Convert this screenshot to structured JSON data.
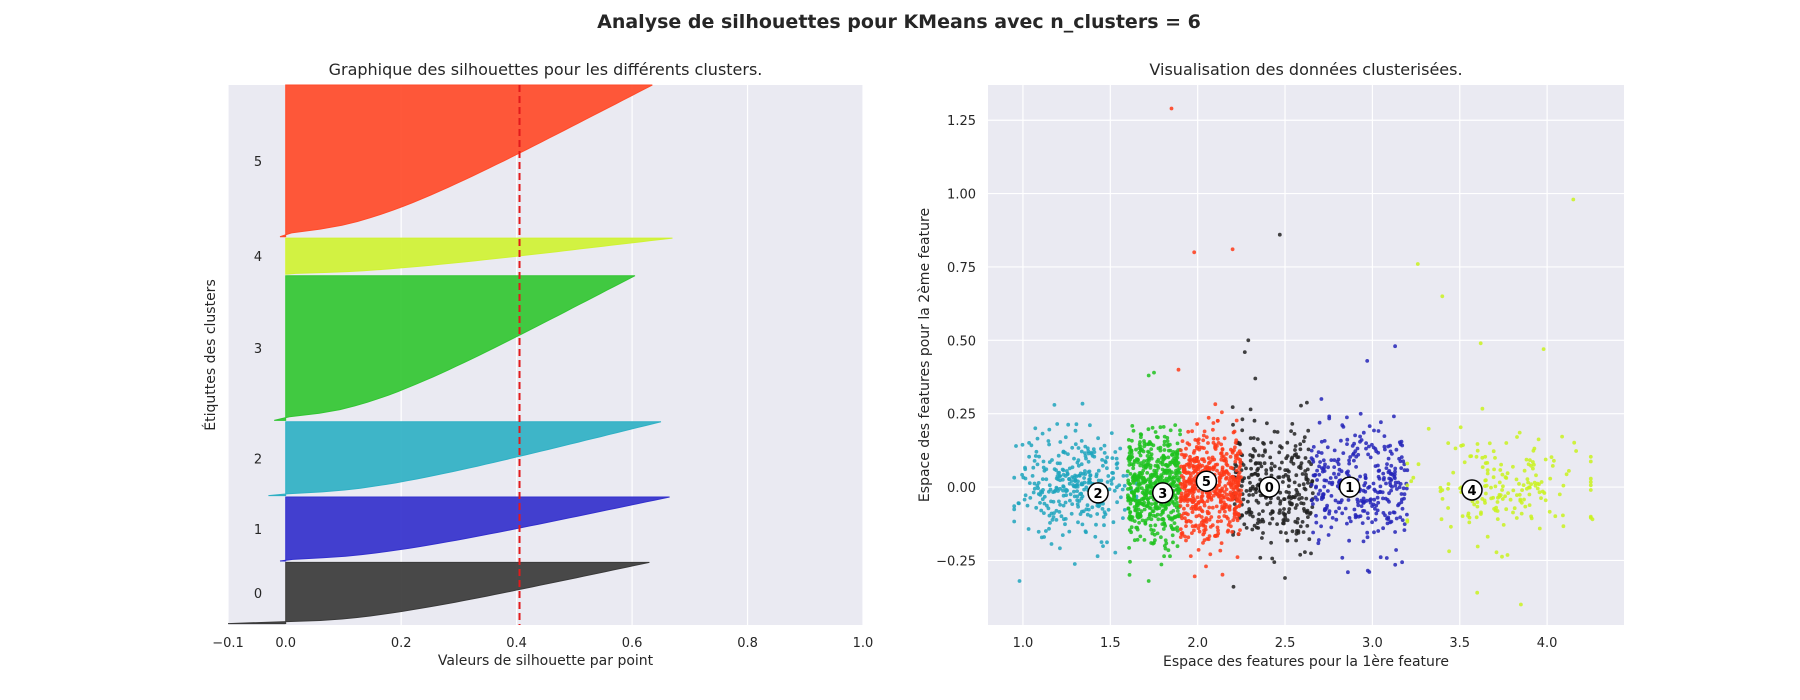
{
  "figure": {
    "suptitle": "Analyse de silhouettes pour KMeans avec n_clusters = 6"
  },
  "chart_data": [
    {
      "type": "area",
      "title": "Graphique des silhouettes pour les différents clusters.",
      "xlabel": "Valeurs de silhouette par point",
      "ylabel": "Étiquttes des clusters",
      "xlim": [
        -0.1,
        1.0
      ],
      "xticks": [
        -0.1,
        0.0,
        0.2,
        0.4,
        0.6,
        0.8,
        1.0
      ],
      "xtick_labels": [
        "−0.1",
        "0.0",
        "0.2",
        "0.4",
        "0.6",
        "0.8",
        "1.0"
      ],
      "ylim": [
        0,
        3880
      ],
      "grid": true,
      "average_silhouette": 0.405,
      "clusters": [
        {
          "label": "0",
          "color": "#3a3a3a",
          "y_lower": 10,
          "y_upper": 450,
          "s_max": 0.63,
          "s_min": -0.1,
          "mid": 0.45
        },
        {
          "label": "1",
          "color": "#3330cc",
          "y_lower": 460,
          "y_upper": 920,
          "s_max": 0.665,
          "s_min": -0.01,
          "mid": 0.5
        },
        {
          "label": "2",
          "color": "#2fb0c4",
          "y_lower": 930,
          "y_upper": 1460,
          "s_max": 0.65,
          "s_min": -0.03,
          "mid": 0.5
        },
        {
          "label": "3",
          "color": "#32c532",
          "y_lower": 1470,
          "y_upper": 2510,
          "s_max": 0.605,
          "s_min": -0.02,
          "mid": 0.45
        },
        {
          "label": "4",
          "color": "#cff233",
          "y_lower": 2520,
          "y_upper": 2780,
          "s_max": 0.67,
          "s_min": 0.0,
          "mid": 0.55
        },
        {
          "label": "5",
          "color": "#ff4a29",
          "y_lower": 2790,
          "y_upper": 3880,
          "s_max": 0.635,
          "s_min": -0.01,
          "mid": 0.44
        }
      ]
    },
    {
      "type": "scatter",
      "title": "Visualisation des données clusterisées.",
      "xlabel": "Espace des features pour la 1ère feature",
      "ylabel": "Espace des features pour la 2ème feature",
      "xlim": [
        0.8,
        4.44
      ],
      "ylim": [
        -0.47,
        1.37
      ],
      "xticks": [
        1.0,
        1.5,
        2.0,
        2.5,
        3.0,
        3.5,
        4.0
      ],
      "xtick_labels": [
        "1.0",
        "1.5",
        "2.0",
        "2.5",
        "3.0",
        "3.5",
        "4.0"
      ],
      "yticks": [
        -0.25,
        0.0,
        0.25,
        0.5,
        0.75,
        1.0,
        1.25
      ],
      "ytick_labels": [
        "−0.25",
        "0.00",
        "0.25",
        "0.50",
        "0.75",
        "1.00",
        "1.25"
      ],
      "grid": true,
      "clusters": [
        {
          "label": "0",
          "color": "#222222",
          "center": [
            2.41,
            0.0
          ],
          "x_range": [
            2.2,
            2.66
          ],
          "y_sd": 0.1,
          "n": 300
        },
        {
          "label": "1",
          "color": "#2424b8",
          "center": [
            2.87,
            0.0
          ],
          "x_range": [
            2.65,
            3.2
          ],
          "y_sd": 0.1,
          "n": 330
        },
        {
          "label": "2",
          "color": "#1fa5bd",
          "center": [
            1.43,
            -0.02
          ],
          "x_range": [
            0.95,
            1.65
          ],
          "y_sd": 0.09,
          "n": 330
        },
        {
          "label": "3",
          "color": "#1ec21e",
          "center": [
            1.8,
            -0.02
          ],
          "x_range": [
            1.6,
            1.9
          ],
          "y_sd": 0.09,
          "n": 560
        },
        {
          "label": "4",
          "color": "#c9f21e",
          "center": [
            3.57,
            -0.01
          ],
          "x_range": [
            3.2,
            4.25
          ],
          "y_sd": 0.09,
          "n": 180
        },
        {
          "label": "5",
          "color": "#ff3a18",
          "center": [
            2.05,
            0.02
          ],
          "x_range": [
            1.9,
            2.25
          ],
          "y_sd": 0.09,
          "n": 560
        }
      ],
      "outliers": [
        {
          "cluster": "5",
          "x": 1.85,
          "y": 1.29
        },
        {
          "cluster": "5",
          "x": 1.98,
          "y": 0.8
        },
        {
          "cluster": "5",
          "x": 2.2,
          "y": 0.81
        },
        {
          "cluster": "5",
          "x": 1.89,
          "y": 0.4
        },
        {
          "cluster": "0",
          "x": 2.47,
          "y": 0.86
        },
        {
          "cluster": "0",
          "x": 2.29,
          "y": 0.5
        },
        {
          "cluster": "0",
          "x": 2.27,
          "y": 0.46
        },
        {
          "cluster": "0",
          "x": 2.33,
          "y": 0.37
        },
        {
          "cluster": "0",
          "x": 2.5,
          "y": -0.31
        },
        {
          "cluster": "1",
          "x": 3.13,
          "y": 0.48
        },
        {
          "cluster": "1",
          "x": 2.97,
          "y": 0.43
        },
        {
          "cluster": "1",
          "x": 2.86,
          "y": -0.29
        },
        {
          "cluster": "2",
          "x": 0.98,
          "y": -0.32
        },
        {
          "cluster": "2",
          "x": 1.18,
          "y": 0.28
        },
        {
          "cluster": "2",
          "x": 0.96,
          "y": 0.14
        },
        {
          "cluster": "3",
          "x": 1.75,
          "y": 0.39
        },
        {
          "cluster": "3",
          "x": 1.72,
          "y": 0.38
        },
        {
          "cluster": "3",
          "x": 1.72,
          "y": -0.32
        },
        {
          "cluster": "4",
          "x": 4.15,
          "y": 0.98
        },
        {
          "cluster": "4",
          "x": 3.26,
          "y": 0.76
        },
        {
          "cluster": "4",
          "x": 3.4,
          "y": 0.65
        },
        {
          "cluster": "4",
          "x": 3.62,
          "y": 0.49
        },
        {
          "cluster": "4",
          "x": 3.98,
          "y": 0.47
        },
        {
          "cluster": "4",
          "x": 3.85,
          "y": -0.4
        },
        {
          "cluster": "4",
          "x": 3.6,
          "y": -0.36
        },
        {
          "cluster": "4",
          "x": 4.26,
          "y": -0.11
        }
      ]
    }
  ]
}
